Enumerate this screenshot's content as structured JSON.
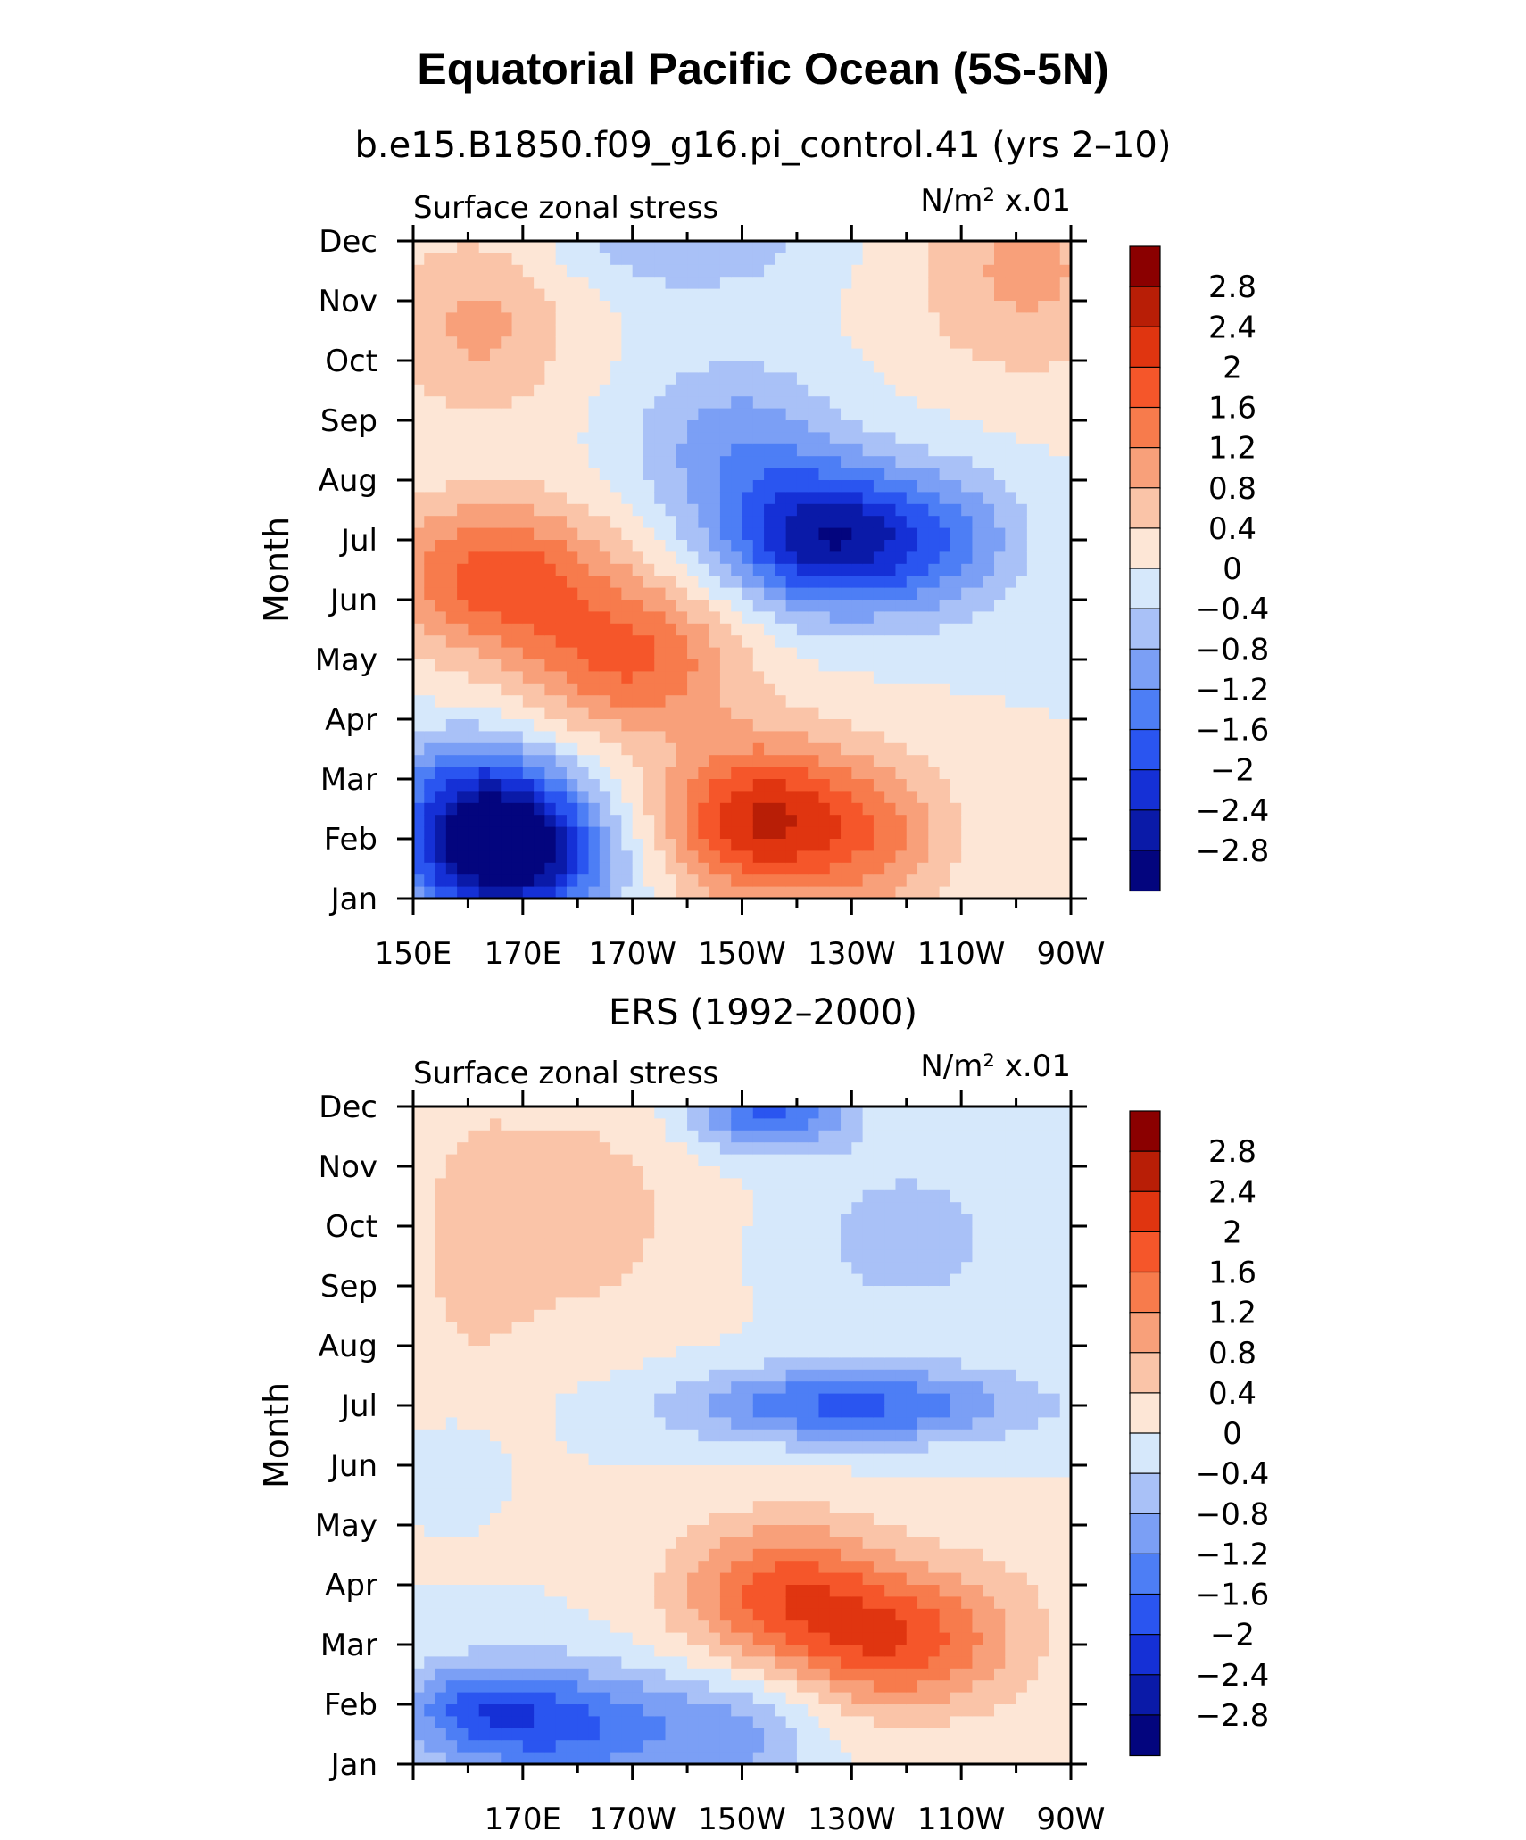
{
  "title": "Equatorial Pacific Ocean (5S-5N)",
  "colors": {
    "palette": [
      "#03057e",
      "#0a1aa8",
      "#1530d6",
      "#2a55f0",
      "#4d7ef5",
      "#7b9ff5",
      "#a9c1f7",
      "#d6e8fb",
      "#fde6d6",
      "#fac4a8",
      "#f8a07a",
      "#f77b4c",
      "#f5562a",
      "#e03510",
      "#b81e06",
      "#8b0000"
    ]
  },
  "chart_data": [
    {
      "type": "heatmap",
      "title": "b.e15.B1850.f09_g16.pi_control.41 (yrs 2–10)",
      "left_label": "Surface zonal stress",
      "right_label": "N/m² x.01",
      "xlabel": "",
      "ylabel": "Month",
      "x_ticks": [
        "150E",
        "170E",
        "170W",
        "150W",
        "130W",
        "110W",
        "90W"
      ],
      "y_ticks": [
        "Jan",
        "Feb",
        "Mar",
        "Apr",
        "May",
        "Jun",
        "Jul",
        "Aug",
        "Sep",
        "Oct",
        "Nov",
        "Dec"
      ],
      "colorbar_levels": [
        "2.8",
        "2.4",
        "2",
        "1.6",
        "1.2",
        "0.8",
        "0.4",
        "0",
        "−0.4",
        "−0.8",
        "−1.2",
        "−1.6",
        "−2",
        "−2.4",
        "−2.8"
      ],
      "xlim": [
        150,
        270
      ],
      "ylim": [
        1,
        12
      ],
      "features": [
        {
          "lon": 166,
          "month": 2.0,
          "value": -3.2,
          "slon": 12,
          "smon": 0.75
        },
        {
          "lon": 160,
          "month": 3.1,
          "value": -1.0,
          "slon": 12,
          "smon": 0.6
        },
        {
          "lon": 168,
          "month": 1.3,
          "value": -1.0,
          "slon": 14,
          "smon": 0.6
        },
        {
          "lon": 165,
          "month": 6.4,
          "value": 1.8,
          "slon": 15,
          "smon": 0.9
        },
        {
          "lon": 190,
          "month": 5.0,
          "value": 1.6,
          "slon": 14,
          "smon": 0.9
        },
        {
          "lon": 214,
          "month": 2.3,
          "value": 2.4,
          "slon": 13,
          "smon": 0.95
        },
        {
          "lon": 236,
          "month": 2.0,
          "value": 0.9,
          "slon": 10,
          "smon": 1.0
        },
        {
          "lon": 227,
          "month": 7.0,
          "value": -2.7,
          "slon": 14,
          "smon": 0.85
        },
        {
          "lon": 209,
          "month": 8.6,
          "value": -1.0,
          "slon": 13,
          "smon": 1.0
        },
        {
          "lon": 250,
          "month": 7.0,
          "value": -0.7,
          "slon": 10,
          "smon": 0.9
        },
        {
          "lon": 162,
          "month": 10.6,
          "value": 0.9,
          "slon": 12,
          "smon": 1.1
        },
        {
          "lon": 262,
          "month": 11.5,
          "value": 0.9,
          "slon": 15,
          "smon": 1.3
        },
        {
          "lon": 200,
          "month": 12.0,
          "value": -0.8,
          "slon": 16,
          "smon": 0.6
        }
      ]
    },
    {
      "type": "heatmap",
      "title": "ERS (1992–2000)",
      "left_label": "Surface zonal stress",
      "right_label": "N/m² x.01",
      "xlabel": "",
      "ylabel": "Month",
      "x_ticks": [
        "170E",
        "170W",
        "150W",
        "130W",
        "110W",
        "90W"
      ],
      "y_ticks": [
        "Jan",
        "Feb",
        "Mar",
        "Apr",
        "May",
        "Jun",
        "Jul",
        "Aug",
        "Sep",
        "Oct",
        "Nov",
        "Dec"
      ],
      "colorbar_levels": [
        "2.8",
        "2.4",
        "2",
        "1.6",
        "1.2",
        "0.8",
        "0.4",
        "0",
        "−0.4",
        "−0.8",
        "−1.2",
        "−1.6",
        "−2",
        "−2.4",
        "−2.8"
      ],
      "xlim": [
        150,
        270
      ],
      "ylim": [
        1,
        12
      ],
      "features": [
        {
          "lon": 178,
          "month": 1.6,
          "value": -1.6,
          "slon": 18,
          "smon": 0.75
        },
        {
          "lon": 162,
          "month": 2.0,
          "value": -1.0,
          "slon": 10,
          "smon": 0.5
        },
        {
          "lon": 210,
          "month": 1.5,
          "value": -0.7,
          "slon": 10,
          "smon": 0.8
        },
        {
          "lon": 218,
          "month": 3.8,
          "value": 1.8,
          "slon": 14,
          "smon": 0.9
        },
        {
          "lon": 238,
          "month": 3.0,
          "value": 1.5,
          "slon": 12,
          "smon": 0.8
        },
        {
          "lon": 255,
          "month": 3.3,
          "value": 0.5,
          "slon": 10,
          "smon": 1.0
        },
        {
          "lon": 230,
          "month": 7.0,
          "value": -1.7,
          "slon": 22,
          "smon": 0.45
        },
        {
          "lon": 240,
          "month": 9.8,
          "value": -0.6,
          "slon": 14,
          "smon": 1.0
        },
        {
          "lon": 215,
          "month": 11.9,
          "value": -1.7,
          "slon": 10,
          "smon": 0.45
        },
        {
          "lon": 180,
          "month": 10.2,
          "value": 0.6,
          "slon": 15,
          "smon": 1.5
        },
        {
          "lon": 160,
          "month": 9.5,
          "value": 0.4,
          "slon": 8,
          "smon": 2.0
        },
        {
          "lon": 158,
          "month": 6.0,
          "value": -0.4,
          "slon": 5,
          "smon": 0.5
        }
      ]
    }
  ]
}
